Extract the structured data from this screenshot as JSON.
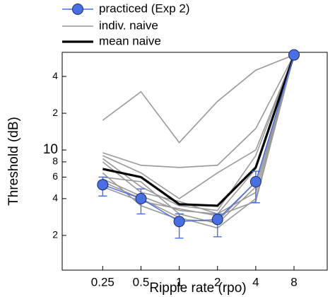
{
  "chart_data": {
    "type": "line",
    "xlabel": "Ripple rate (rpo)",
    "ylabel": "Threshold (dB)",
    "x": [
      0.25,
      0.5,
      1,
      2,
      4,
      8
    ],
    "xscale": "log",
    "yscale": "log",
    "xlim": [
      0.12,
      14.6
    ],
    "ylim": [
      1.04,
      63
    ],
    "xticks": [
      0.25,
      0.5,
      1,
      2,
      4,
      8
    ],
    "yticks": [
      2,
      4,
      6,
      8,
      10,
      {
        "value": 20,
        "label": "2"
      },
      {
        "value": 40,
        "label": "4"
      }
    ],
    "legend": "top-left",
    "series": [
      {
        "name": "practiced (Exp 2)",
        "color": "#4a6fe0",
        "marker": "circle",
        "values": [
          5.2,
          4.0,
          2.6,
          2.7,
          5.5,
          60
        ],
        "error_low": [
          4.2,
          3.0,
          1.9,
          1.95,
          3.7,
          null
        ],
        "error_high": [
          6.0,
          4.8,
          3.0,
          3.0,
          6.7,
          null
        ]
      },
      {
        "name": "indiv. naive",
        "color": "#999999",
        "values": [
          [
            17.5,
            30,
            11.5,
            25,
            45,
            60
          ],
          [
            9.5,
            7.5,
            7.2,
            7.5,
            15,
            60
          ],
          [
            9,
            6.5,
            4,
            6.5,
            10,
            60
          ],
          [
            8.5,
            5,
            3.5,
            3.2,
            9,
            60
          ],
          [
            8,
            4.5,
            3.8,
            3,
            7,
            60
          ],
          [
            6,
            5.5,
            3,
            2.5,
            5,
            60
          ],
          [
            5.8,
            4.2,
            3.2,
            3,
            4.5,
            60
          ],
          [
            5.5,
            4,
            2.8,
            2.3,
            4,
            60
          ],
          [
            6.5,
            3.5,
            2.7,
            2.6,
            5.5,
            60
          ],
          [
            5,
            3.8,
            3.3,
            2.9,
            3.8,
            60
          ]
        ]
      },
      {
        "name": "mean naive",
        "color": "#000000",
        "values": [
          7.0,
          6.0,
          3.6,
          3.5,
          7.2,
          60
        ]
      }
    ]
  }
}
